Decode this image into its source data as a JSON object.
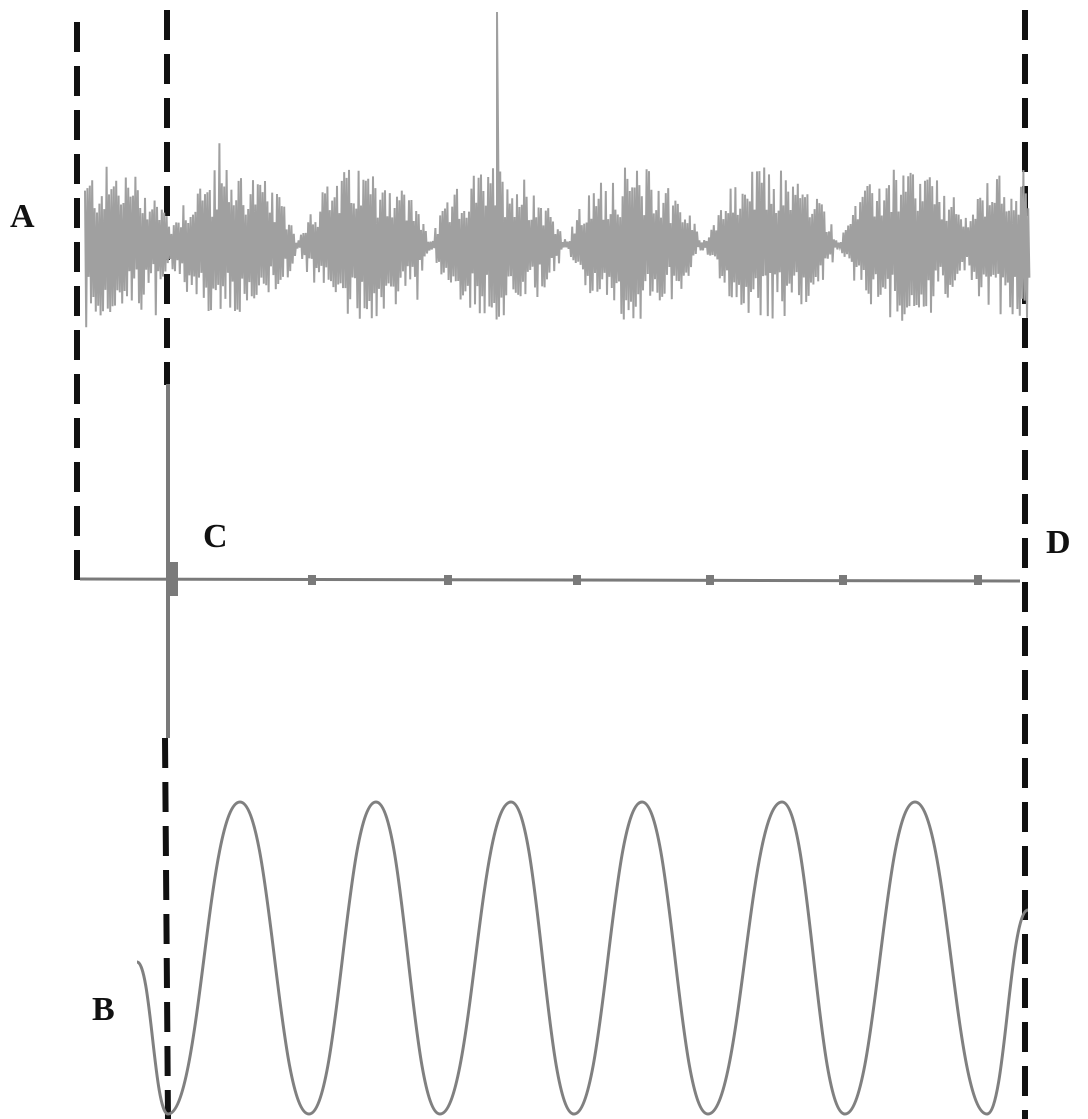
{
  "labels": {
    "a": "A",
    "b": "B",
    "c": "C",
    "d": "D"
  },
  "colors": {
    "trace_a": "#a0a0a0",
    "trace_c": "#7a7a7a",
    "trace_b": "#808080",
    "marker_lines": "#111111",
    "labels": "#111111"
  },
  "traces": {
    "a": {
      "description_kind": "amplitude-modulated noise-like signal",
      "bursts": 7
    },
    "c": {
      "description_kind": "baseline with spike at left reference line and small periodic ticks",
      "ticks": 7
    },
    "b": {
      "description_kind": "smooth periodic oscillation",
      "peaks": 6
    }
  },
  "markers": {
    "line_styles": "dashed",
    "count": 3
  }
}
